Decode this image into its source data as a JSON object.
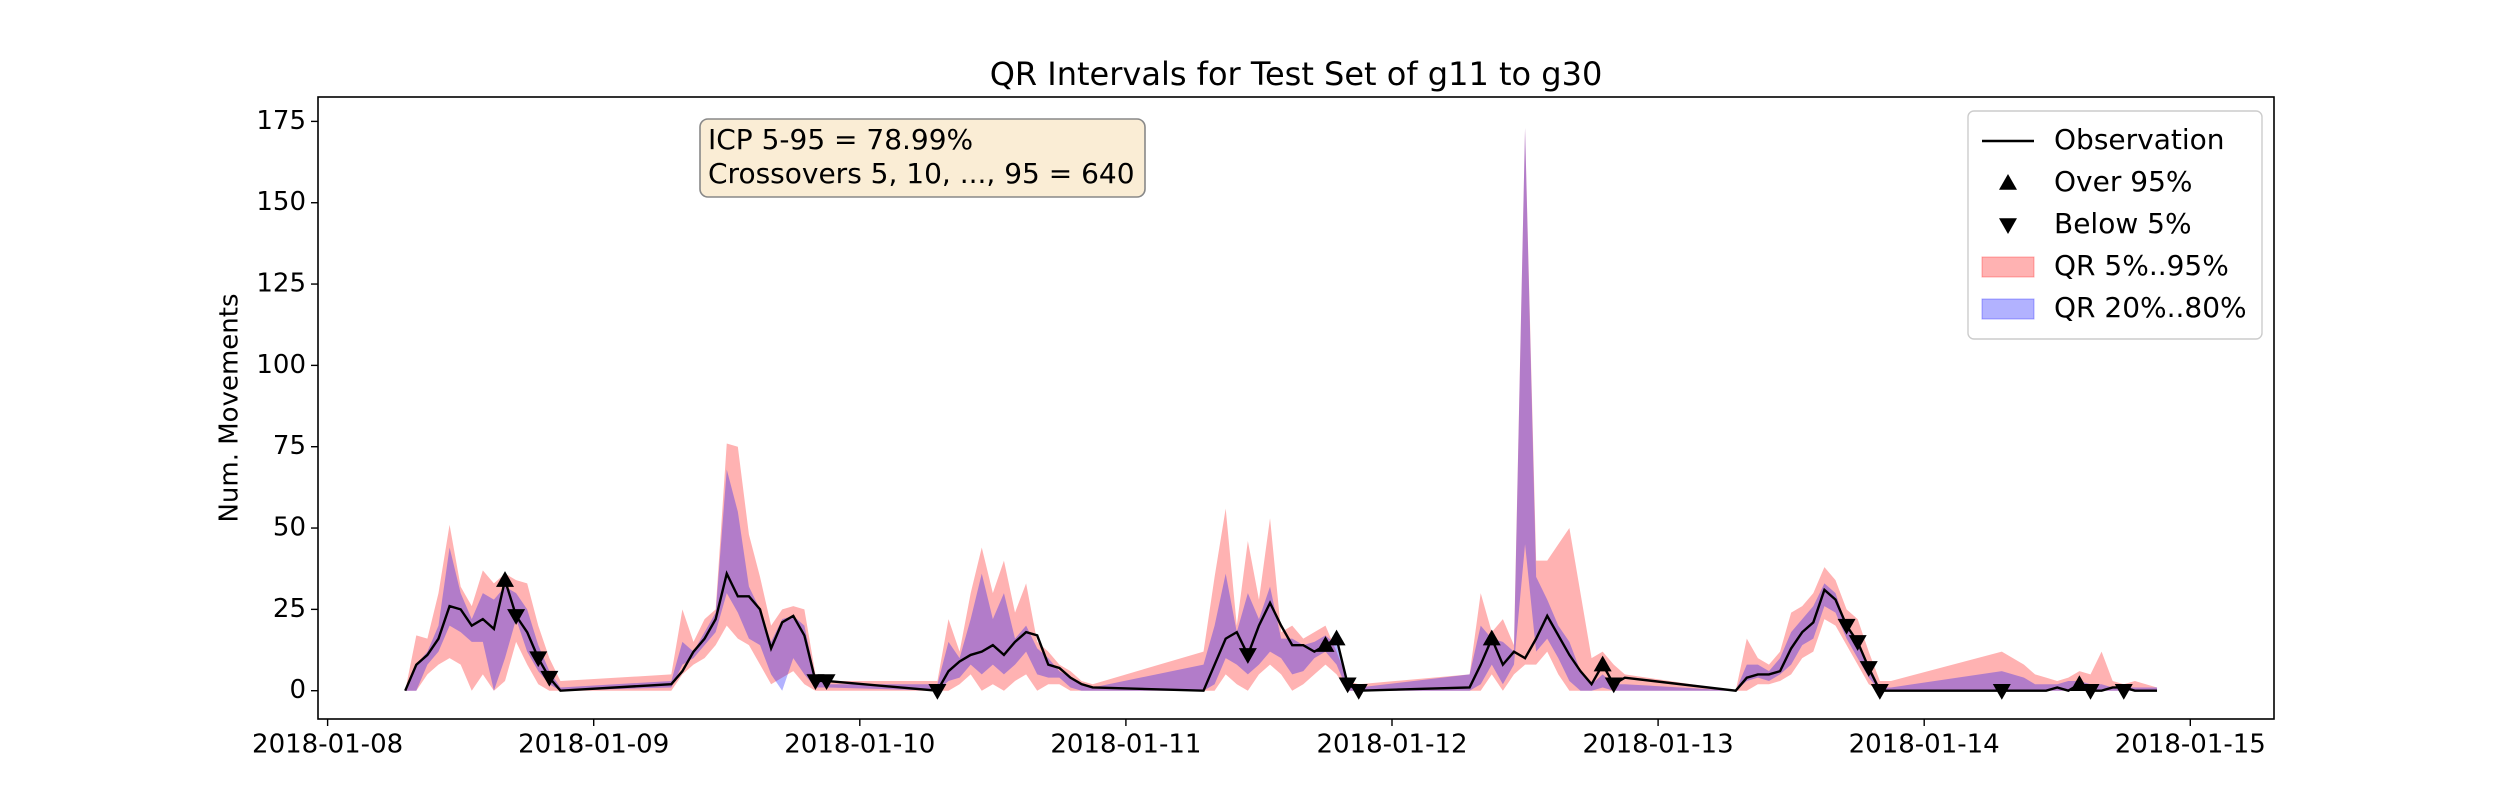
{
  "chart_data": {
    "type": "line",
    "title": "QR Intervals for Test Set of g11 to g30",
    "ylabel": "Num. Movements",
    "x": [
      "2018-01-08T07:00",
      "2018-01-08T08:00",
      "2018-01-08T09:00",
      "2018-01-08T10:00",
      "2018-01-08T11:00",
      "2018-01-08T12:00",
      "2018-01-08T13:00",
      "2018-01-08T14:00",
      "2018-01-08T15:00",
      "2018-01-08T16:00",
      "2018-01-08T17:00",
      "2018-01-08T18:00",
      "2018-01-08T19:00",
      "2018-01-08T20:00",
      "2018-01-08T21:00",
      "2018-01-09T07:00",
      "2018-01-09T08:00",
      "2018-01-09T09:00",
      "2018-01-09T10:00",
      "2018-01-09T11:00",
      "2018-01-09T12:00",
      "2018-01-09T13:00",
      "2018-01-09T14:00",
      "2018-01-09T15:00",
      "2018-01-09T16:00",
      "2018-01-09T17:00",
      "2018-01-09T18:00",
      "2018-01-09T19:00",
      "2018-01-09T20:00",
      "2018-01-09T21:00",
      "2018-01-10T07:00",
      "2018-01-10T08:00",
      "2018-01-10T09:00",
      "2018-01-10T10:00",
      "2018-01-10T11:00",
      "2018-01-10T12:00",
      "2018-01-10T13:00",
      "2018-01-10T14:00",
      "2018-01-10T15:00",
      "2018-01-10T16:00",
      "2018-01-10T17:00",
      "2018-01-10T18:00",
      "2018-01-10T19:00",
      "2018-01-10T20:00",
      "2018-01-10T21:00",
      "2018-01-11T07:00",
      "2018-01-11T08:00",
      "2018-01-11T09:00",
      "2018-01-11T10:00",
      "2018-01-11T11:00",
      "2018-01-11T12:00",
      "2018-01-11T13:00",
      "2018-01-11T14:00",
      "2018-01-11T15:00",
      "2018-01-11T16:00",
      "2018-01-11T17:00",
      "2018-01-11T18:00",
      "2018-01-11T19:00",
      "2018-01-11T20:00",
      "2018-01-11T21:00",
      "2018-01-12T07:00",
      "2018-01-12T08:00",
      "2018-01-12T09:00",
      "2018-01-12T10:00",
      "2018-01-12T11:00",
      "2018-01-12T12:00",
      "2018-01-12T13:00",
      "2018-01-12T14:00",
      "2018-01-12T15:00",
      "2018-01-12T16:00",
      "2018-01-12T17:00",
      "2018-01-12T18:00",
      "2018-01-12T19:00",
      "2018-01-12T20:00",
      "2018-01-12T21:00",
      "2018-01-13T07:00",
      "2018-01-13T08:00",
      "2018-01-13T09:00",
      "2018-01-13T10:00",
      "2018-01-13T11:00",
      "2018-01-13T12:00",
      "2018-01-13T13:00",
      "2018-01-13T14:00",
      "2018-01-13T15:00",
      "2018-01-13T16:00",
      "2018-01-13T17:00",
      "2018-01-13T18:00",
      "2018-01-13T19:00",
      "2018-01-13T20:00",
      "2018-01-13T21:00",
      "2018-01-14T07:00",
      "2018-01-14T08:00",
      "2018-01-14T09:00",
      "2018-01-14T10:00",
      "2018-01-14T11:00",
      "2018-01-14T12:00",
      "2018-01-14T13:00",
      "2018-01-14T14:00",
      "2018-01-14T15:00",
      "2018-01-14T16:00",
      "2018-01-14T17:00",
      "2018-01-14T18:00",
      "2018-01-14T19:00",
      "2018-01-14T20:00",
      "2018-01-14T21:00"
    ],
    "xlim": [
      "2018-01-07T23:08",
      "2018-01-15T07:33"
    ],
    "xticks": [
      "2018-01-08",
      "2018-01-09",
      "2018-01-10",
      "2018-01-11",
      "2018-01-12",
      "2018-01-13",
      "2018-01-14",
      "2018-01-15"
    ],
    "ylim": [
      -8.7,
      182.5
    ],
    "yticks": [
      0,
      25,
      50,
      75,
      100,
      125,
      150,
      175
    ],
    "series": [
      {
        "name": "Observation",
        "color": "#000000",
        "values": [
          0,
          8,
          11,
          16,
          26,
          25,
          20,
          22,
          19,
          34,
          23,
          18,
          10,
          4,
          0,
          2,
          6,
          12,
          16,
          22,
          36,
          29,
          29,
          25,
          13,
          21,
          23,
          17,
          3,
          3,
          0,
          6,
          9,
          11,
          12,
          14,
          11,
          15,
          18,
          17,
          8,
          7,
          4,
          2,
          1,
          0,
          8,
          16,
          18,
          11,
          20,
          27,
          20,
          14,
          14,
          12,
          14,
          16,
          2,
          0,
          1,
          8,
          16,
          8,
          12,
          10,
          16,
          23,
          17,
          11,
          6,
          2,
          8,
          2,
          4,
          0,
          4,
          5,
          5,
          6,
          13,
          18,
          21,
          31,
          28,
          20,
          15,
          7,
          0,
          0,
          0,
          0,
          0,
          0,
          0,
          1,
          0,
          2,
          0,
          0,
          1,
          1,
          0,
          0,
          0
        ]
      }
    ],
    "bands": [
      {
        "name": "QR 5%..95%",
        "color": "#ff0000",
        "lower": [
          0,
          0,
          5,
          8,
          10,
          8,
          0,
          5,
          0,
          3,
          15,
          8,
          2,
          0,
          0,
          0,
          5,
          8,
          10,
          14,
          20,
          16,
          14,
          8,
          2,
          4,
          6,
          2,
          0,
          0,
          0,
          0,
          2,
          5,
          0,
          2,
          0,
          3,
          5,
          0,
          2,
          2,
          0,
          0,
          0,
          0,
          0,
          5,
          2,
          0,
          5,
          8,
          5,
          0,
          2,
          5,
          8,
          5,
          0,
          0,
          0,
          0,
          5,
          0,
          5,
          8,
          8,
          12,
          5,
          0,
          0,
          0,
          0,
          0,
          0,
          0,
          0,
          2,
          2,
          3,
          5,
          10,
          12,
          22,
          20,
          14,
          8,
          2,
          0,
          0,
          0,
          0,
          0,
          0,
          0,
          0,
          0,
          0,
          0,
          0,
          0,
          0,
          0,
          0,
          0
        ],
        "upper": [
          0,
          17,
          16,
          30,
          51,
          32,
          26,
          37,
          33,
          36,
          34,
          33,
          20,
          10,
          3,
          5,
          25,
          15,
          22,
          25,
          76,
          75,
          48,
          35,
          20,
          25,
          26,
          25,
          5,
          3,
          3,
          22,
          12,
          30,
          44,
          30,
          40,
          24,
          33,
          15,
          12,
          8,
          6,
          3,
          2,
          12,
          35,
          56,
          20,
          46,
          28,
          53,
          18,
          20,
          16,
          18,
          20,
          12,
          3,
          2,
          5,
          30,
          18,
          22,
          14,
          173,
          40,
          40,
          45,
          50,
          30,
          10,
          12,
          8,
          5,
          0,
          16,
          10,
          8,
          12,
          24,
          26,
          30,
          38,
          34,
          25,
          22,
          12,
          3,
          3,
          12,
          10,
          8,
          5,
          4,
          3,
          4,
          6,
          5,
          12,
          3,
          2,
          3,
          2,
          1
        ]
      },
      {
        "name": "QR 20%..80%",
        "color": "#0000ff",
        "lower": [
          0,
          0,
          8,
          12,
          20,
          18,
          15,
          15,
          0,
          10,
          22,
          12,
          6,
          2,
          0,
          1,
          8,
          10,
          14,
          18,
          30,
          24,
          16,
          14,
          5,
          0,
          10,
          5,
          1,
          1,
          0,
          3,
          4,
          8,
          5,
          8,
          5,
          8,
          12,
          5,
          4,
          4,
          1,
          0,
          0,
          0,
          2,
          10,
          8,
          5,
          8,
          12,
          10,
          5,
          6,
          10,
          12,
          8,
          0,
          0,
          0,
          2,
          8,
          2,
          8,
          45,
          12,
          16,
          10,
          3,
          0,
          0,
          1,
          0,
          0,
          0,
          3,
          4,
          3,
          5,
          8,
          14,
          16,
          26,
          24,
          16,
          10,
          4,
          0,
          0,
          0,
          0,
          0,
          0,
          0,
          0,
          0,
          0,
          0,
          0,
          0,
          0,
          0,
          0,
          0
        ],
        "upper": [
          0,
          8,
          12,
          20,
          44,
          30,
          22,
          30,
          28,
          32,
          30,
          25,
          14,
          6,
          1,
          3,
          15,
          12,
          18,
          24,
          68,
          55,
          32,
          25,
          15,
          22,
          23,
          20,
          4,
          2,
          2,
          15,
          10,
          22,
          36,
          22,
          30,
          16,
          20,
          13,
          10,
          6,
          4,
          2,
          1,
          8,
          20,
          36,
          18,
          30,
          22,
          32,
          16,
          16,
          14,
          15,
          17,
          14,
          2,
          1,
          5,
          20,
          16,
          15,
          12,
          173,
          35,
          28,
          20,
          15,
          6,
          2,
          5,
          2,
          2,
          0,
          8,
          8,
          6,
          10,
          18,
          22,
          26,
          33,
          30,
          20,
          14,
          8,
          1,
          1,
          6,
          5,
          4,
          2,
          2,
          2,
          3,
          3,
          2,
          2,
          1,
          1,
          1,
          1,
          1
        ]
      }
    ],
    "markers": [
      {
        "name": "Over 95%",
        "marker": "triangle-up",
        "color": "#000000",
        "x": [
          "2018-01-08T16:00",
          "2018-01-11T18:00",
          "2018-01-11T19:00",
          "2018-01-12T09:00",
          "2018-01-12T19:00",
          "2018-01-14T14:00"
        ],
        "values": [
          34,
          14,
          16,
          16,
          8,
          2
        ]
      },
      {
        "name": "Below 5%",
        "marker": "triangle-down",
        "color": "#000000",
        "x": [
          "2018-01-08T17:00",
          "2018-01-08T19:00",
          "2018-01-08T20:00",
          "2018-01-09T20:00",
          "2018-01-09T21:00",
          "2018-01-10T07:00",
          "2018-01-11T11:00",
          "2018-01-11T20:00",
          "2018-01-11T21:00",
          "2018-01-12T20:00",
          "2018-01-13T17:00",
          "2018-01-13T18:00",
          "2018-01-13T19:00",
          "2018-01-13T20:00",
          "2018-01-14T07:00",
          "2018-01-14T15:00",
          "2018-01-14T18:00"
        ],
        "values": [
          23,
          10,
          4,
          3,
          3,
          0,
          11,
          2,
          0,
          2,
          20,
          15,
          7,
          0,
          0,
          0,
          0
        ]
      }
    ],
    "annotation": [
      "ICP 5-95 = 78.99%",
      "Crossovers 5, 10, ..., 95 = 640"
    ],
    "legend": "upper right"
  }
}
